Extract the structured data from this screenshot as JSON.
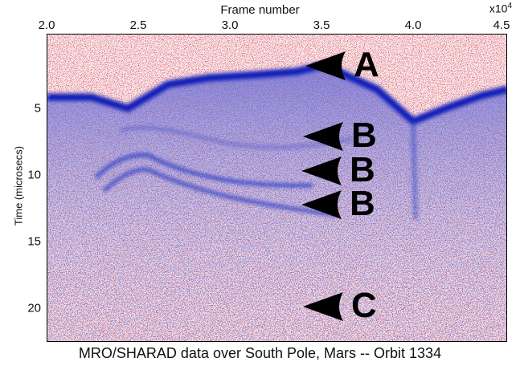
{
  "top_axis": {
    "title": "Frame number",
    "multiplier": "x10",
    "multiplier_exp": "4",
    "ticks": [
      "2.0",
      "2.5",
      "3.0",
      "3.5",
      "4.0",
      "4.5"
    ]
  },
  "left_axis": {
    "title": "Time (microsecs)",
    "ticks": [
      "5",
      "10",
      "15",
      "20"
    ]
  },
  "caption": "MRO/SHARAD data over South Pole, Mars -- Orbit 1334",
  "markers": [
    {
      "label": "A"
    },
    {
      "label": "B"
    },
    {
      "label": "B"
    },
    {
      "label": "B"
    },
    {
      "label": "C"
    }
  ],
  "colors": {
    "positive": "#d42020",
    "negative": "#1a2fd0",
    "neutral": "#f2eef2"
  }
}
